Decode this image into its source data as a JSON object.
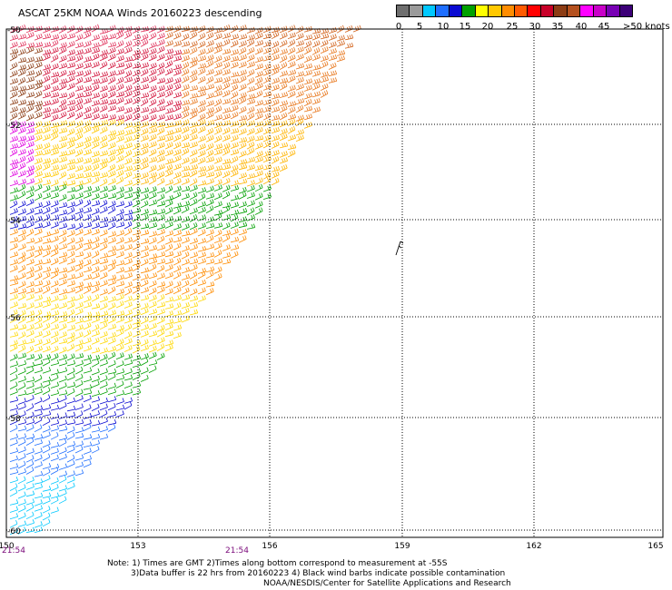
{
  "title": "ASCAT 25KM NOAA Winds 20160223 descending",
  "legend": {
    "swatches": [
      {
        "color": "#6e6e6e"
      },
      {
        "color": "#9a9a9a"
      },
      {
        "color": "#00c8ff"
      },
      {
        "color": "#1e6eff"
      },
      {
        "color": "#0a0ad2"
      },
      {
        "color": "#00a000"
      },
      {
        "color": "#ffff00"
      },
      {
        "color": "#ffc800"
      },
      {
        "color": "#ff8c00"
      },
      {
        "color": "#ff5a00"
      },
      {
        "color": "#ff0000"
      },
      {
        "color": "#c80028"
      },
      {
        "color": "#8c3c14"
      },
      {
        "color": "#b4501e"
      },
      {
        "color": "#ff00ff"
      },
      {
        "color": "#c800c8"
      },
      {
        "color": "#7800b4"
      },
      {
        "color": "#3c0078"
      }
    ],
    "labels": [
      "0",
      "5",
      "10",
      "15",
      "20",
      "25",
      "30",
      "35",
      "40",
      "45",
      ">50 knots"
    ]
  },
  "map": {
    "lon_ticks": [
      "150",
      "153",
      "156",
      "159",
      "162",
      "165"
    ],
    "lat_labels": [
      "-50",
      "-52",
      "-54",
      "-56",
      "-58",
      "-60"
    ],
    "time_labels": [
      "21:54",
      "21:54"
    ]
  },
  "notes": {
    "line1": "Note: 1) Times are GMT 2)Times along bottom correspond to measurement at -55S",
    "line2": "3)Data buffer is 22 hrs from 20160223 4) Black wind barbs indicate possible contamination",
    "line3": "NOAA/NESDIS/Center for Satellite Applications and Research"
  }
}
